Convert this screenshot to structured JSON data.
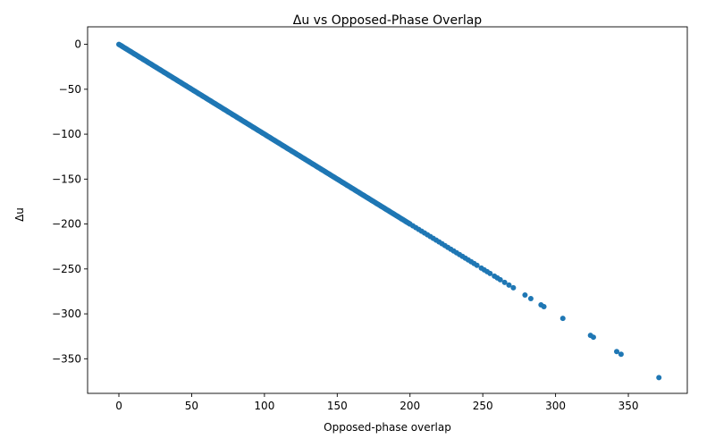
{
  "chart_data": {
    "type": "scatter",
    "title": "Δu vs Opposed-Phase Overlap",
    "xlabel": "Opposed-phase overlap",
    "ylabel": "Δu",
    "xlim": [
      -21.5,
      390.5
    ],
    "ylim": [
      -388.5,
      19.5
    ],
    "xticks": [
      0,
      50,
      100,
      150,
      200,
      250,
      300,
      350
    ],
    "yticks": [
      0,
      -50,
      -100,
      -150,
      -200,
      -250,
      -300,
      -350
    ],
    "grid": false,
    "color": "#1f77b4",
    "relation": "y = -x",
    "dense_segments": [
      {
        "from": 0,
        "to": 200,
        "step": 0.6
      },
      {
        "from": 200,
        "to": 245,
        "step": 2
      }
    ],
    "points": [
      [
        246,
        -246
      ],
      [
        249,
        -249
      ],
      [
        251,
        -251
      ],
      [
        253,
        -253
      ],
      [
        255,
        -255
      ],
      [
        258,
        -258
      ],
      [
        260,
        -260
      ],
      [
        262,
        -262
      ],
      [
        265,
        -265
      ],
      [
        268,
        -268
      ],
      [
        271,
        -271
      ],
      [
        279,
        -279
      ],
      [
        283,
        -283
      ],
      [
        290,
        -290
      ],
      [
        292,
        -292
      ],
      [
        305,
        -305
      ],
      [
        324,
        -324
      ],
      [
        326,
        -326
      ],
      [
        342,
        -342
      ],
      [
        345,
        -345
      ],
      [
        371,
        -371
      ]
    ]
  }
}
